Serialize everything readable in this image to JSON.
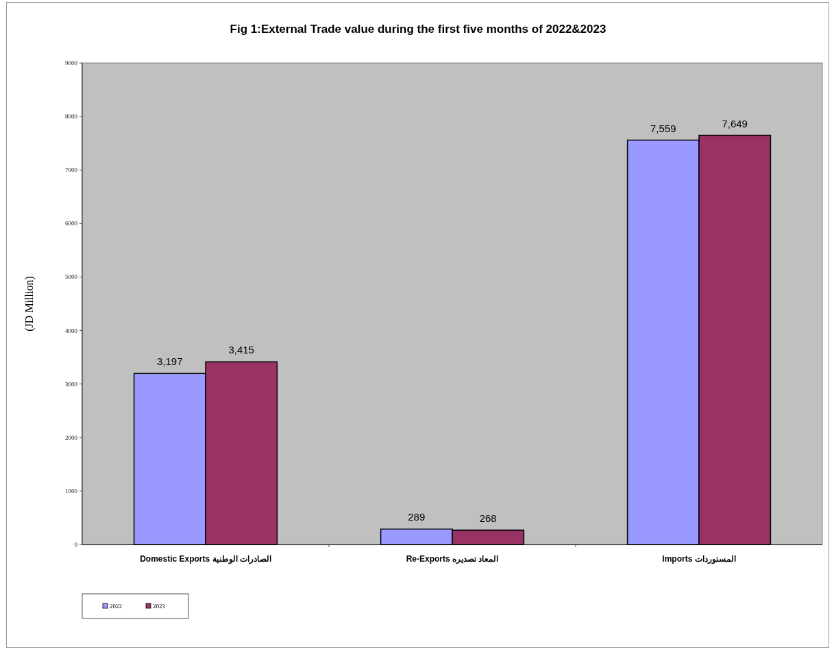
{
  "chart_data": {
    "type": "bar",
    "title": "Fig 1:External Trade value during the first five months of 2022&2023",
    "ylabel": "(JD Million)",
    "categories": [
      "Domestic Exports  الصادرات الوطنية",
      "Re-Exports  المعاد تصديره",
      "Imports  المستوردات"
    ],
    "series": [
      {
        "name": "2022",
        "color": "#9999ff",
        "values": [
          3197,
          289,
          7559
        ],
        "value_labels": [
          "3,197",
          "289",
          "7,559"
        ]
      },
      {
        "name": "2023",
        "color": "#993366",
        "values": [
          3415,
          268,
          7649
        ],
        "value_labels": [
          "3,415",
          "268",
          "7,649"
        ]
      }
    ],
    "ylim": [
      0,
      9000
    ],
    "yticks": [
      0,
      1000,
      2000,
      3000,
      4000,
      5000,
      6000,
      7000,
      8000,
      9000
    ],
    "grid": false,
    "legend": "bottom left"
  }
}
